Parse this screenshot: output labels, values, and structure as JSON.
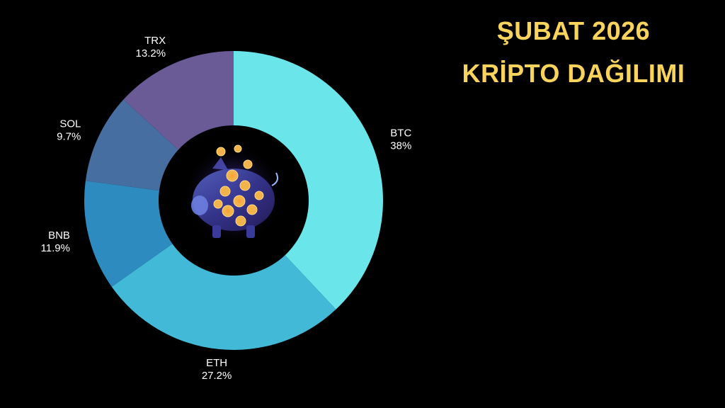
{
  "title_lines": [
    "ŞUBAT 2026",
    "KRİPTO DAĞILIMI"
  ],
  "chart_data": {
    "type": "pie",
    "variant": "donut",
    "start": "12 o'clock",
    "direction": "clockwise",
    "slices": [
      {
        "label": "BTC",
        "value": 38.0,
        "value_label": "38%",
        "color": "#6ae6ea"
      },
      {
        "label": "ETH",
        "value": 27.2,
        "value_label": "27.2%",
        "color": "#43b9d8"
      },
      {
        "label": "BNB",
        "value": 11.9,
        "value_label": "11.9%",
        "color": "#2e8bbf"
      },
      {
        "label": "SOL",
        "value": 9.7,
        "value_label": "9.7%",
        "color": "#476ea1"
      },
      {
        "label": "TRX",
        "value": 13.2,
        "value_label": "13.2%",
        "color": "#6a5a96"
      }
    ],
    "center_image": "piggy-bank-with-crypto-coins"
  }
}
